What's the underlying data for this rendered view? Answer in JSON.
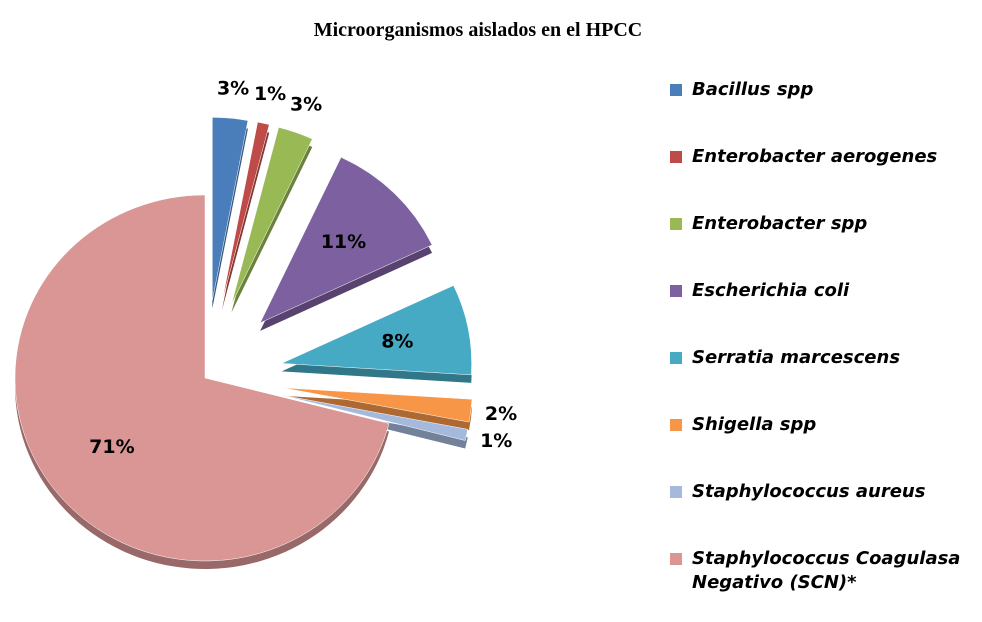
{
  "chart_data": {
    "type": "pie",
    "title": "Microorganismos aislados en el HPCC",
    "categories": [
      "Bacillus spp",
      "Enterobacter aerogenes",
      "Enterobacter spp",
      "Escherichia coli",
      "Serratia marcescens",
      "Shigella spp",
      "Staphylococcus aureus",
      "Staphylococcus Coagulasa Negativo (SCN)*"
    ],
    "values": [
      3,
      1,
      3,
      11,
      8,
      2,
      1,
      71
    ],
    "value_labels": [
      "3%",
      "1%",
      "3%",
      "11%",
      "8%",
      "2%",
      "1%",
      "71%"
    ],
    "colors": [
      "#4a7ebb",
      "#be4b48",
      "#98b954",
      "#7d60a0",
      "#46aac5",
      "#f79646",
      "#a5b9dc",
      "#d99694"
    ],
    "legend": "right"
  }
}
